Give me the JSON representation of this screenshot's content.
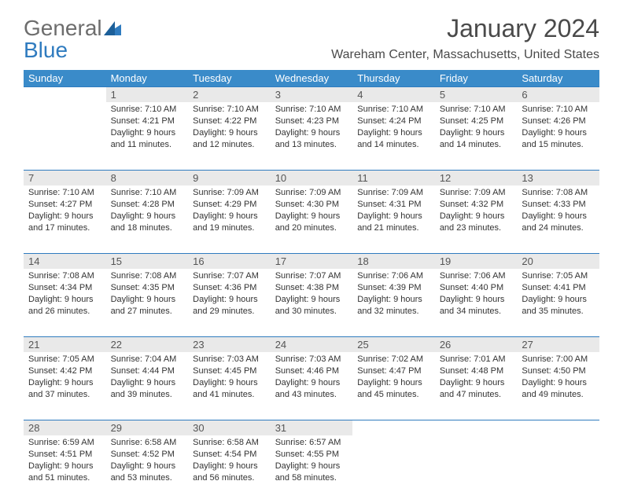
{
  "logo": {
    "word1": "General",
    "word2": "Blue"
  },
  "title": "January 2024",
  "location": "Wareham Center, Massachusetts, United States",
  "colors": {
    "header_bg": "#3a8bc9",
    "header_text": "#ffffff",
    "daynum_bg": "#e9e9e9",
    "rule": "#2f7bbf",
    "logo_gray": "#6d6d6d",
    "logo_blue": "#2f7bbf"
  },
  "day_headers": [
    "Sunday",
    "Monday",
    "Tuesday",
    "Wednesday",
    "Thursday",
    "Friday",
    "Saturday"
  ],
  "weeks": [
    {
      "nums": [
        "",
        "1",
        "2",
        "3",
        "4",
        "5",
        "6"
      ],
      "cells": [
        null,
        {
          "sunrise": "7:10 AM",
          "sunset": "4:21 PM",
          "daylight": "9 hours and 11 minutes."
        },
        {
          "sunrise": "7:10 AM",
          "sunset": "4:22 PM",
          "daylight": "9 hours and 12 minutes."
        },
        {
          "sunrise": "7:10 AM",
          "sunset": "4:23 PM",
          "daylight": "9 hours and 13 minutes."
        },
        {
          "sunrise": "7:10 AM",
          "sunset": "4:24 PM",
          "daylight": "9 hours and 14 minutes."
        },
        {
          "sunrise": "7:10 AM",
          "sunset": "4:25 PM",
          "daylight": "9 hours and 14 minutes."
        },
        {
          "sunrise": "7:10 AM",
          "sunset": "4:26 PM",
          "daylight": "9 hours and 15 minutes."
        }
      ]
    },
    {
      "nums": [
        "7",
        "8",
        "9",
        "10",
        "11",
        "12",
        "13"
      ],
      "cells": [
        {
          "sunrise": "7:10 AM",
          "sunset": "4:27 PM",
          "daylight": "9 hours and 17 minutes."
        },
        {
          "sunrise": "7:10 AM",
          "sunset": "4:28 PM",
          "daylight": "9 hours and 18 minutes."
        },
        {
          "sunrise": "7:09 AM",
          "sunset": "4:29 PM",
          "daylight": "9 hours and 19 minutes."
        },
        {
          "sunrise": "7:09 AM",
          "sunset": "4:30 PM",
          "daylight": "9 hours and 20 minutes."
        },
        {
          "sunrise": "7:09 AM",
          "sunset": "4:31 PM",
          "daylight": "9 hours and 21 minutes."
        },
        {
          "sunrise": "7:09 AM",
          "sunset": "4:32 PM",
          "daylight": "9 hours and 23 minutes."
        },
        {
          "sunrise": "7:08 AM",
          "sunset": "4:33 PM",
          "daylight": "9 hours and 24 minutes."
        }
      ]
    },
    {
      "nums": [
        "14",
        "15",
        "16",
        "17",
        "18",
        "19",
        "20"
      ],
      "cells": [
        {
          "sunrise": "7:08 AM",
          "sunset": "4:34 PM",
          "daylight": "9 hours and 26 minutes."
        },
        {
          "sunrise": "7:08 AM",
          "sunset": "4:35 PM",
          "daylight": "9 hours and 27 minutes."
        },
        {
          "sunrise": "7:07 AM",
          "sunset": "4:36 PM",
          "daylight": "9 hours and 29 minutes."
        },
        {
          "sunrise": "7:07 AM",
          "sunset": "4:38 PM",
          "daylight": "9 hours and 30 minutes."
        },
        {
          "sunrise": "7:06 AM",
          "sunset": "4:39 PM",
          "daylight": "9 hours and 32 minutes."
        },
        {
          "sunrise": "7:06 AM",
          "sunset": "4:40 PM",
          "daylight": "9 hours and 34 minutes."
        },
        {
          "sunrise": "7:05 AM",
          "sunset": "4:41 PM",
          "daylight": "9 hours and 35 minutes."
        }
      ]
    },
    {
      "nums": [
        "21",
        "22",
        "23",
        "24",
        "25",
        "26",
        "27"
      ],
      "cells": [
        {
          "sunrise": "7:05 AM",
          "sunset": "4:42 PM",
          "daylight": "9 hours and 37 minutes."
        },
        {
          "sunrise": "7:04 AM",
          "sunset": "4:44 PM",
          "daylight": "9 hours and 39 minutes."
        },
        {
          "sunrise": "7:03 AM",
          "sunset": "4:45 PM",
          "daylight": "9 hours and 41 minutes."
        },
        {
          "sunrise": "7:03 AM",
          "sunset": "4:46 PM",
          "daylight": "9 hours and 43 minutes."
        },
        {
          "sunrise": "7:02 AM",
          "sunset": "4:47 PM",
          "daylight": "9 hours and 45 minutes."
        },
        {
          "sunrise": "7:01 AM",
          "sunset": "4:48 PM",
          "daylight": "9 hours and 47 minutes."
        },
        {
          "sunrise": "7:00 AM",
          "sunset": "4:50 PM",
          "daylight": "9 hours and 49 minutes."
        }
      ]
    },
    {
      "nums": [
        "28",
        "29",
        "30",
        "31",
        "",
        "",
        ""
      ],
      "cells": [
        {
          "sunrise": "6:59 AM",
          "sunset": "4:51 PM",
          "daylight": "9 hours and 51 minutes."
        },
        {
          "sunrise": "6:58 AM",
          "sunset": "4:52 PM",
          "daylight": "9 hours and 53 minutes."
        },
        {
          "sunrise": "6:58 AM",
          "sunset": "4:54 PM",
          "daylight": "9 hours and 56 minutes."
        },
        {
          "sunrise": "6:57 AM",
          "sunset": "4:55 PM",
          "daylight": "9 hours and 58 minutes."
        },
        null,
        null,
        null
      ]
    }
  ],
  "labels": {
    "sunrise": "Sunrise:",
    "sunset": "Sunset:",
    "daylight": "Daylight:"
  }
}
